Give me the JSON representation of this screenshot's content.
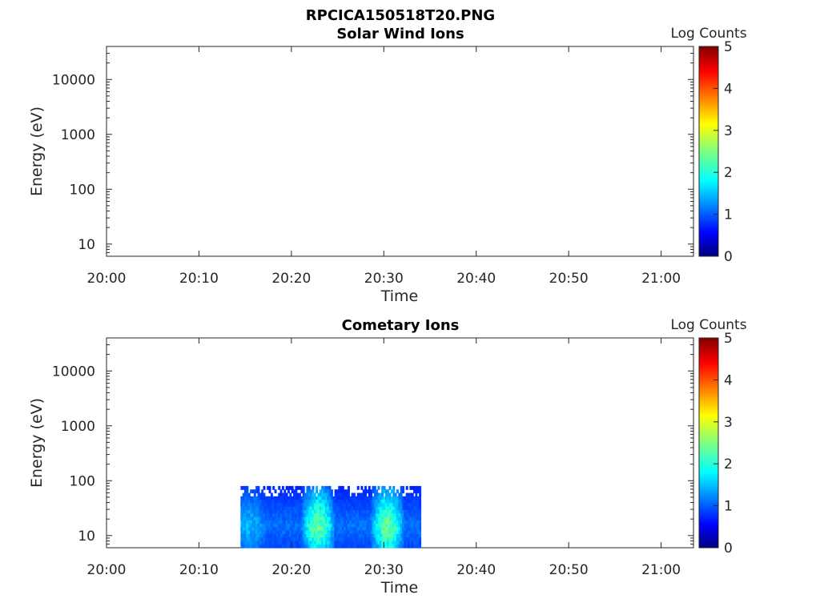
{
  "figure": {
    "title": "RPCICA150518T20.PNG"
  },
  "chart_data": [
    {
      "type": "heatmap",
      "title": "Solar Wind Ions",
      "xlabel": "Time",
      "ylabel": "Energy (eV)",
      "x_ticks": [
        "20:00",
        "20:10",
        "20:20",
        "20:30",
        "20:40",
        "20:50",
        "21:00"
      ],
      "x_range_minutes_after_2000": [
        0,
        63.5
      ],
      "y_scale": "log",
      "y_ticks": [
        "10",
        "100",
        "1000",
        "10000"
      ],
      "ylim": [
        6,
        40000
      ],
      "colorbar": {
        "label": "Log Counts",
        "range": [
          0,
          5
        ],
        "ticks": [
          "0",
          "1",
          "2",
          "3",
          "4",
          "5"
        ],
        "colormap": "jet"
      },
      "data_blocks": []
    },
    {
      "type": "heatmap",
      "title": "Cometary Ions",
      "xlabel": "Time",
      "ylabel": "Energy (eV)",
      "x_ticks": [
        "20:00",
        "20:10",
        "20:20",
        "20:30",
        "20:40",
        "20:50",
        "21:00"
      ],
      "x_range_minutes_after_2000": [
        0,
        63.5
      ],
      "y_scale": "log",
      "y_ticks": [
        "10",
        "100",
        "1000",
        "10000"
      ],
      "ylim": [
        6,
        40000
      ],
      "colorbar": {
        "label": "Log Counts",
        "range": [
          0,
          5
        ],
        "ticks": [
          "0",
          "1",
          "2",
          "3",
          "4",
          "5"
        ],
        "colormap": "jet"
      },
      "data_blocks": [
        {
          "time_start": "20:14.5",
          "time_end": "20:34",
          "energy_min_eV": 6,
          "energy_max_eV": 80,
          "typical_log_counts": [
            0.5,
            2.8
          ]
        }
      ]
    }
  ]
}
